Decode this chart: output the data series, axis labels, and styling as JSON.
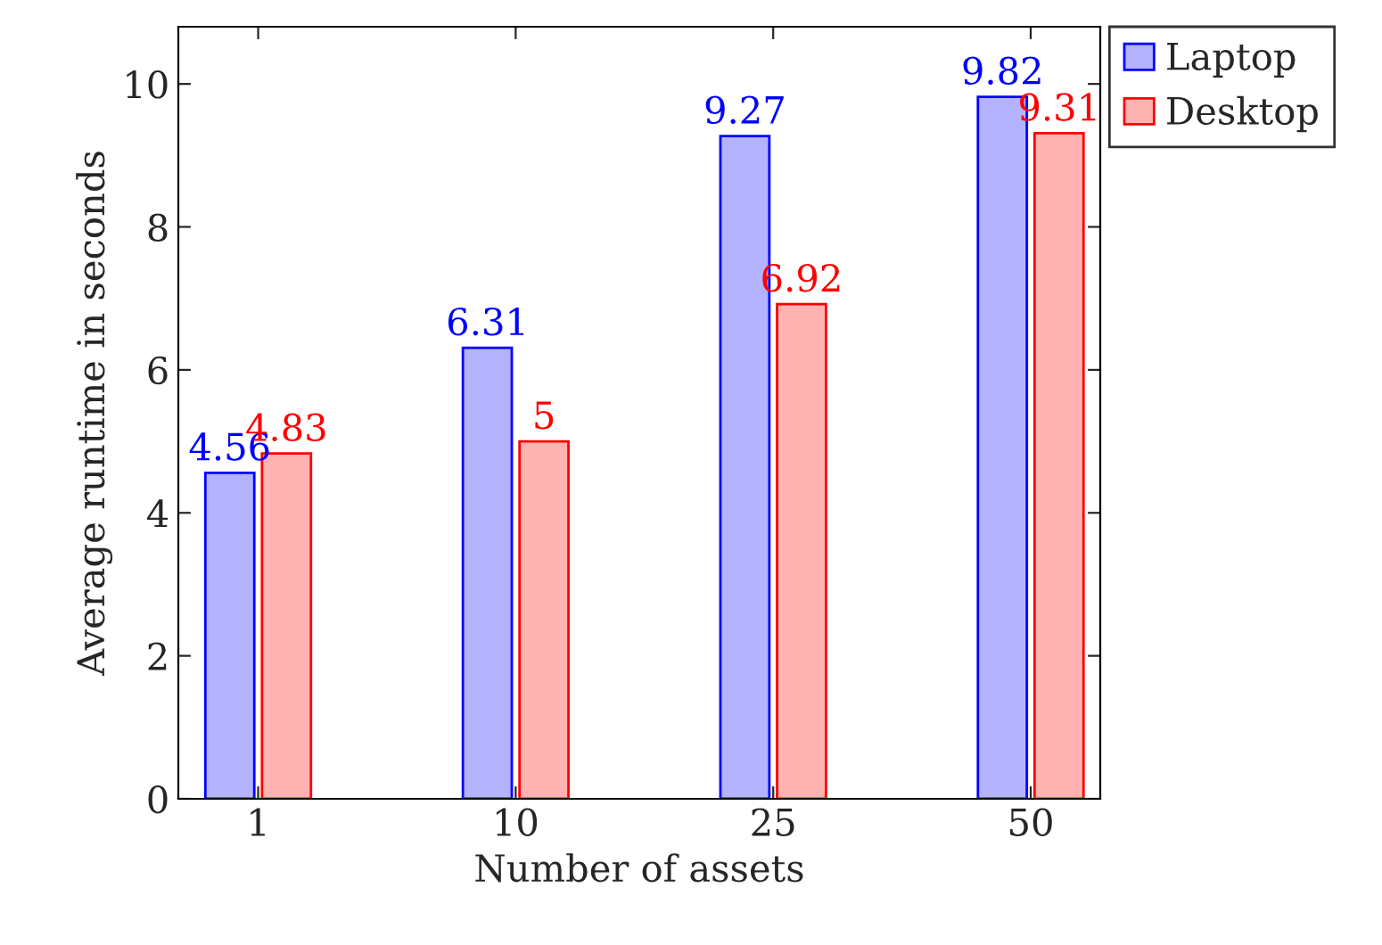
{
  "chart_data": {
    "type": "bar",
    "xlabel": "Number of assets",
    "ylabel": "Average runtime in seconds",
    "categories": [
      "1",
      "10",
      "25",
      "50"
    ],
    "series": [
      {
        "name": "Laptop",
        "color": "#b3b3ff",
        "values": [
          4.56,
          6.31,
          9.27,
          9.82
        ]
      },
      {
        "name": "Desktop",
        "color": "#ffb3b3",
        "values": [
          4.83,
          5,
          6.92,
          9.31
        ]
      }
    ],
    "ylim": [
      0,
      10.8
    ],
    "yticks": [
      0,
      2,
      4,
      6,
      8,
      10
    ],
    "data_labels": true,
    "legend": "top right",
    "grid": false
  }
}
